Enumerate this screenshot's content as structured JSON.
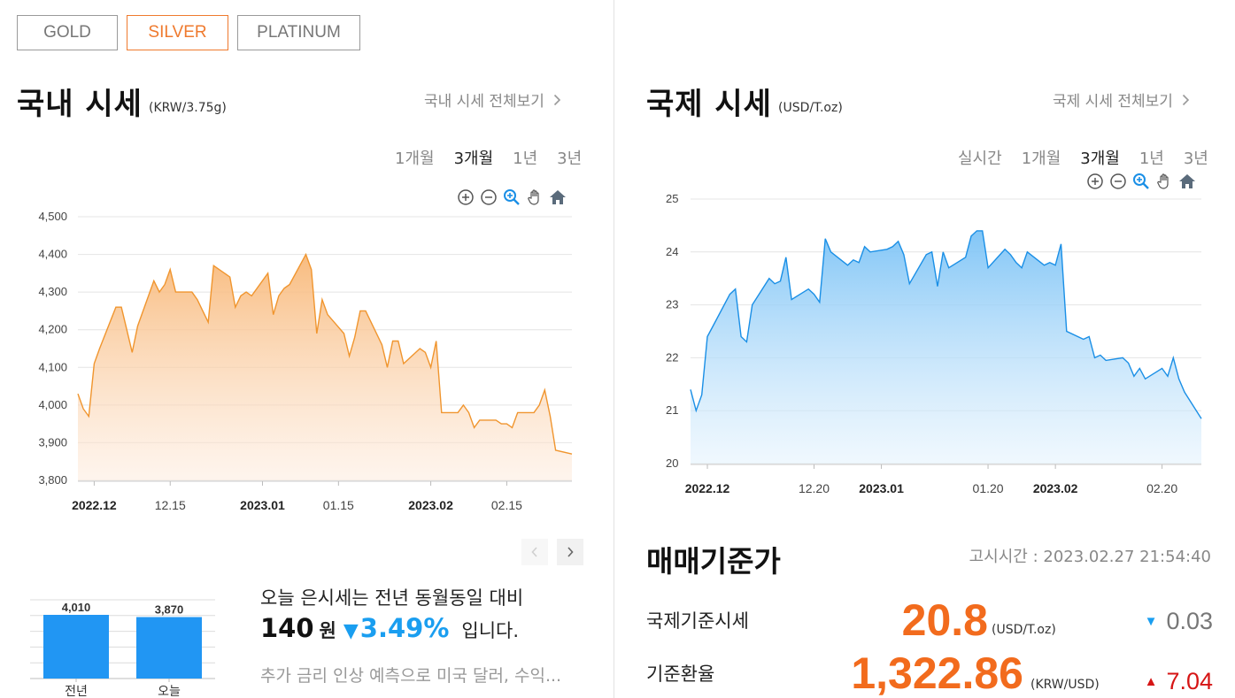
{
  "metal_tabs": [
    {
      "label": "GOLD",
      "active": false
    },
    {
      "label": "SILVER",
      "active": true
    },
    {
      "label": "PLATINUM",
      "active": false
    }
  ],
  "domestic": {
    "title": "국내 시세",
    "unit": "(KRW/3.75g)",
    "view_all": "국내 시세 전체보기",
    "periods": [
      {
        "label": "1개월",
        "active": false
      },
      {
        "label": "3개월",
        "active": true
      },
      {
        "label": "1년",
        "active": false
      },
      {
        "label": "3년",
        "active": false
      }
    ]
  },
  "international": {
    "title": "국제 시세",
    "unit": "(USD/T.oz)",
    "view_all": "국제 시세 전체보기",
    "periods": [
      {
        "label": "실시간",
        "active": false
      },
      {
        "label": "1개월",
        "active": false
      },
      {
        "label": "3개월",
        "active": true
      },
      {
        "label": "1년",
        "active": false
      },
      {
        "label": "3년",
        "active": false
      }
    ]
  },
  "colors": {
    "accent": "#ef7a2e",
    "domestic_line": "#f0952e",
    "domestic_fill_top": "#f8b878",
    "international_line": "#1a8fe6",
    "international_fill_top": "#7cc3f6",
    "bar": "#2196f3",
    "down": "#1a9ef0",
    "up": "#d61515"
  },
  "chart_data": [
    {
      "type": "area",
      "x": [
        "2022-11-28",
        "2022-11-29",
        "2022-11-30",
        "2022-12-01",
        "2022-12-02",
        "2022-12-05",
        "2022-12-06",
        "2022-12-07",
        "2022-12-08",
        "2022-12-09",
        "2022-12-12",
        "2022-12-13",
        "2022-12-14",
        "2022-12-15",
        "2022-12-16",
        "2022-12-19",
        "2022-12-20",
        "2022-12-21",
        "2022-12-22",
        "2022-12-23",
        "2022-12-26",
        "2022-12-27",
        "2022-12-28",
        "2022-12-29",
        "2022-12-30",
        "2023-01-02",
        "2023-01-03",
        "2023-01-04",
        "2023-01-05",
        "2023-01-06",
        "2023-01-09",
        "2023-01-10",
        "2023-01-11",
        "2023-01-12",
        "2023-01-13",
        "2023-01-16",
        "2023-01-17",
        "2023-01-18",
        "2023-01-19",
        "2023-01-20",
        "2023-01-23",
        "2023-01-24",
        "2023-01-25",
        "2023-01-26",
        "2023-01-27",
        "2023-01-30",
        "2023-01-31",
        "2023-02-01",
        "2023-02-02",
        "2023-02-03",
        "2023-02-06",
        "2023-02-07",
        "2023-02-08",
        "2023-02-09",
        "2023-02-10",
        "2023-02-13",
        "2023-02-14",
        "2023-02-15",
        "2023-02-16",
        "2023-02-17",
        "2023-02-20",
        "2023-02-21",
        "2023-02-22",
        "2023-02-23",
        "2023-02-24",
        "2023-02-27"
      ],
      "series": [
        {
          "values": [
            4030,
            3990,
            3970,
            4110,
            4150,
            4260,
            4260,
            4200,
            4140,
            4210,
            4330,
            4300,
            4320,
            4360,
            4300,
            4300,
            4280,
            4250,
            4220,
            4370,
            4340,
            4260,
            4290,
            4300,
            4290,
            4350,
            4240,
            4290,
            4310,
            4320,
            4400,
            4360,
            4190,
            4280,
            4240,
            4190,
            4130,
            4180,
            4250,
            4250,
            4160,
            4100,
            4170,
            4170,
            4110,
            4150,
            4140,
            4100,
            4170,
            3980,
            3980,
            4000,
            3980,
            3940,
            3960,
            3960,
            3950,
            3950,
            3940,
            3980,
            3980,
            4000,
            4040,
            3970,
            3880,
            3870
          ]
        }
      ],
      "ylim": [
        3800,
        4500
      ],
      "yticks": [
        "4,500",
        "4,400",
        "4,300",
        "4,200",
        "4,100",
        "4,000",
        "3,900",
        "3,800"
      ],
      "xticks": [
        {
          "label": "2022.12",
          "date": "2022-12-01",
          "bold": true
        },
        {
          "label": "12.15",
          "date": "2022-12-15",
          "bold": false
        },
        {
          "label": "2023.01",
          "date": "2023-01-01",
          "bold": true
        },
        {
          "label": "01.15",
          "date": "2023-01-15",
          "bold": false
        },
        {
          "label": "2023.02",
          "date": "2023-02-01",
          "bold": true
        },
        {
          "label": "02.15",
          "date": "2023-02-15",
          "bold": false
        }
      ],
      "grid": true
    },
    {
      "type": "area",
      "x": [
        "2022-11-28",
        "2022-11-29",
        "2022-11-30",
        "2022-12-01",
        "2022-12-02",
        "2022-12-05",
        "2022-12-06",
        "2022-12-07",
        "2022-12-08",
        "2022-12-09",
        "2022-12-12",
        "2022-12-13",
        "2022-12-14",
        "2022-12-15",
        "2022-12-16",
        "2022-12-19",
        "2022-12-20",
        "2022-12-21",
        "2022-12-22",
        "2022-12-23",
        "2022-12-26",
        "2022-12-27",
        "2022-12-28",
        "2022-12-29",
        "2022-12-30",
        "2023-01-02",
        "2023-01-03",
        "2023-01-04",
        "2023-01-05",
        "2023-01-06",
        "2023-01-09",
        "2023-01-10",
        "2023-01-11",
        "2023-01-12",
        "2023-01-13",
        "2023-01-16",
        "2023-01-17",
        "2023-01-18",
        "2023-01-19",
        "2023-01-20",
        "2023-01-23",
        "2023-01-24",
        "2023-01-25",
        "2023-01-26",
        "2023-01-27",
        "2023-01-30",
        "2023-01-31",
        "2023-02-01",
        "2023-02-02",
        "2023-02-03",
        "2023-02-06",
        "2023-02-07",
        "2023-02-08",
        "2023-02-09",
        "2023-02-10",
        "2023-02-13",
        "2023-02-14",
        "2023-02-15",
        "2023-02-16",
        "2023-02-17",
        "2023-02-20",
        "2023-02-21",
        "2023-02-22",
        "2023-02-23",
        "2023-02-24",
        "2023-02-27"
      ],
      "series": [
        {
          "values": [
            21.4,
            21.0,
            21.3,
            22.4,
            22.6,
            23.2,
            23.3,
            22.4,
            22.3,
            23.0,
            23.5,
            23.4,
            23.45,
            23.9,
            23.1,
            23.3,
            23.2,
            23.05,
            24.25,
            24.0,
            23.75,
            23.85,
            23.8,
            24.1,
            24.0,
            24.05,
            24.1,
            24.2,
            23.95,
            23.4,
            23.95,
            24.0,
            23.35,
            24.0,
            23.7,
            23.9,
            24.3,
            24.4,
            24.4,
            23.7,
            24.05,
            23.95,
            23.8,
            23.7,
            24.0,
            23.75,
            23.8,
            23.75,
            24.15,
            22.5,
            22.35,
            22.4,
            22.0,
            22.05,
            21.95,
            22.0,
            21.9,
            21.65,
            21.8,
            21.6,
            21.8,
            21.65,
            22.0,
            21.6,
            21.35,
            20.85
          ]
        }
      ],
      "ylim": [
        20,
        25
      ],
      "yticks": [
        "25",
        "24",
        "23",
        "22",
        "21",
        "20"
      ],
      "xticks": [
        {
          "label": "2022.12",
          "date": "2022-12-01",
          "bold": true
        },
        {
          "label": "12.20",
          "date": "2022-12-20",
          "bold": false
        },
        {
          "label": "2023.01",
          "date": "2023-01-01",
          "bold": true
        },
        {
          "label": "01.20",
          "date": "2023-01-20",
          "bold": false
        },
        {
          "label": "2023.02",
          "date": "2023-02-01",
          "bold": true
        },
        {
          "label": "02.20",
          "date": "2023-02-20",
          "bold": false
        }
      ],
      "grid": true
    },
    {
      "type": "bar",
      "categories": [
        "전년",
        "오늘"
      ],
      "values": [
        4010,
        3870
      ],
      "data_labels": [
        "4,010",
        "3,870"
      ],
      "grid": true
    }
  ],
  "comparison": {
    "line1": "오늘 은시세는 전년 동월동일 대비",
    "amount": "140",
    "amount_unit": "원",
    "arrow": "▼",
    "percent": "3.49%",
    "tail": "입니다.",
    "news": "추가 금리 인상 예측으로 미국 달러, 수익..."
  },
  "base_price": {
    "title": "매매기준가",
    "notice_time": "고시시간 : 2023.02.27 21:54:40",
    "rows": [
      {
        "label": "국제기준시세",
        "value": "20.8",
        "unit": "(USD/T.oz)",
        "arrow": "▼",
        "change": "0.03",
        "direction": "down"
      },
      {
        "label": "기준환율",
        "value": "1,322.86",
        "unit": "(KRW/USD)",
        "arrow": "▲",
        "change": "7.04",
        "direction": "up"
      }
    ]
  }
}
